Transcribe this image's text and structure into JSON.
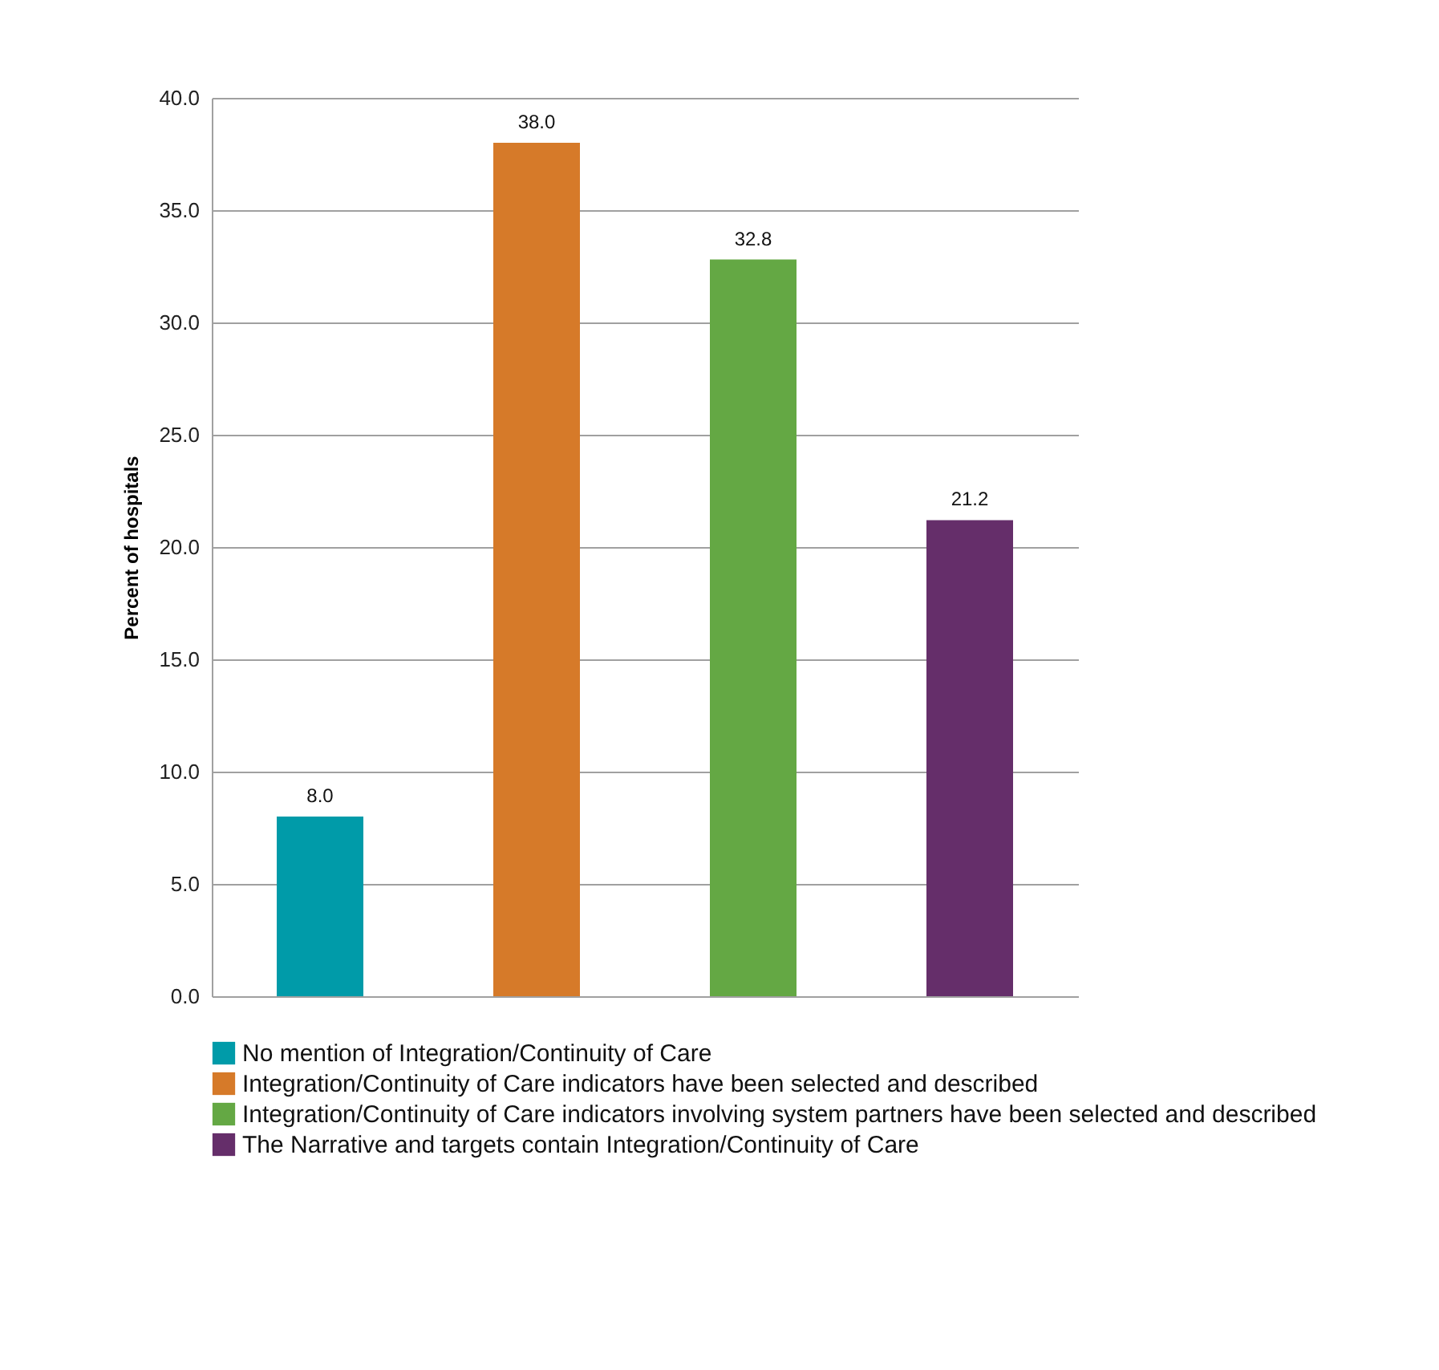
{
  "chart_data": {
    "type": "bar",
    "ylabel": "Percent of hospitals",
    "categories": [
      null,
      null,
      null,
      null
    ],
    "series": [
      {
        "name": "No mention of Integration/Continuity of Care",
        "color": "#009ba9",
        "values": [
          8.0,
          null,
          null,
          null
        ],
        "value_labels": [
          "8.0",
          null,
          null,
          null
        ]
      },
      {
        "name": "Integration/Continuity of Care indicators have been selected and described",
        "color": "#d67a29",
        "values": [
          null,
          38.0,
          null,
          null
        ],
        "value_labels": [
          null,
          "38.0",
          null,
          null
        ]
      },
      {
        "name": "Integration/Continuity of Care indicators involving system partners have been selected and described",
        "color": "#64a844",
        "values": [
          null,
          null,
          32.8,
          null
        ],
        "value_labels": [
          null,
          null,
          "32.8",
          null
        ]
      },
      {
        "name": "The Narrative and targets contain Integration/Continuity of Care",
        "color": "#652e6a",
        "values": [
          null,
          null,
          null,
          21.2
        ],
        "value_labels": [
          null,
          null,
          null,
          "21.2"
        ]
      }
    ],
    "ylim": [
      0,
      40
    ],
    "yticks": [
      {
        "value": 0,
        "label": "0.0"
      },
      {
        "value": 5,
        "label": "5.0"
      },
      {
        "value": 10,
        "label": "10.0"
      },
      {
        "value": 15,
        "label": "15.0"
      },
      {
        "value": 20,
        "label": "20.0"
      },
      {
        "value": 25,
        "label": "25.0"
      },
      {
        "value": 30,
        "label": "30.0"
      },
      {
        "value": 35,
        "label": "35.0"
      },
      {
        "value": 40,
        "label": "40.0"
      }
    ],
    "grid": "y",
    "legend": "bottom",
    "tick_labels": "y"
  }
}
